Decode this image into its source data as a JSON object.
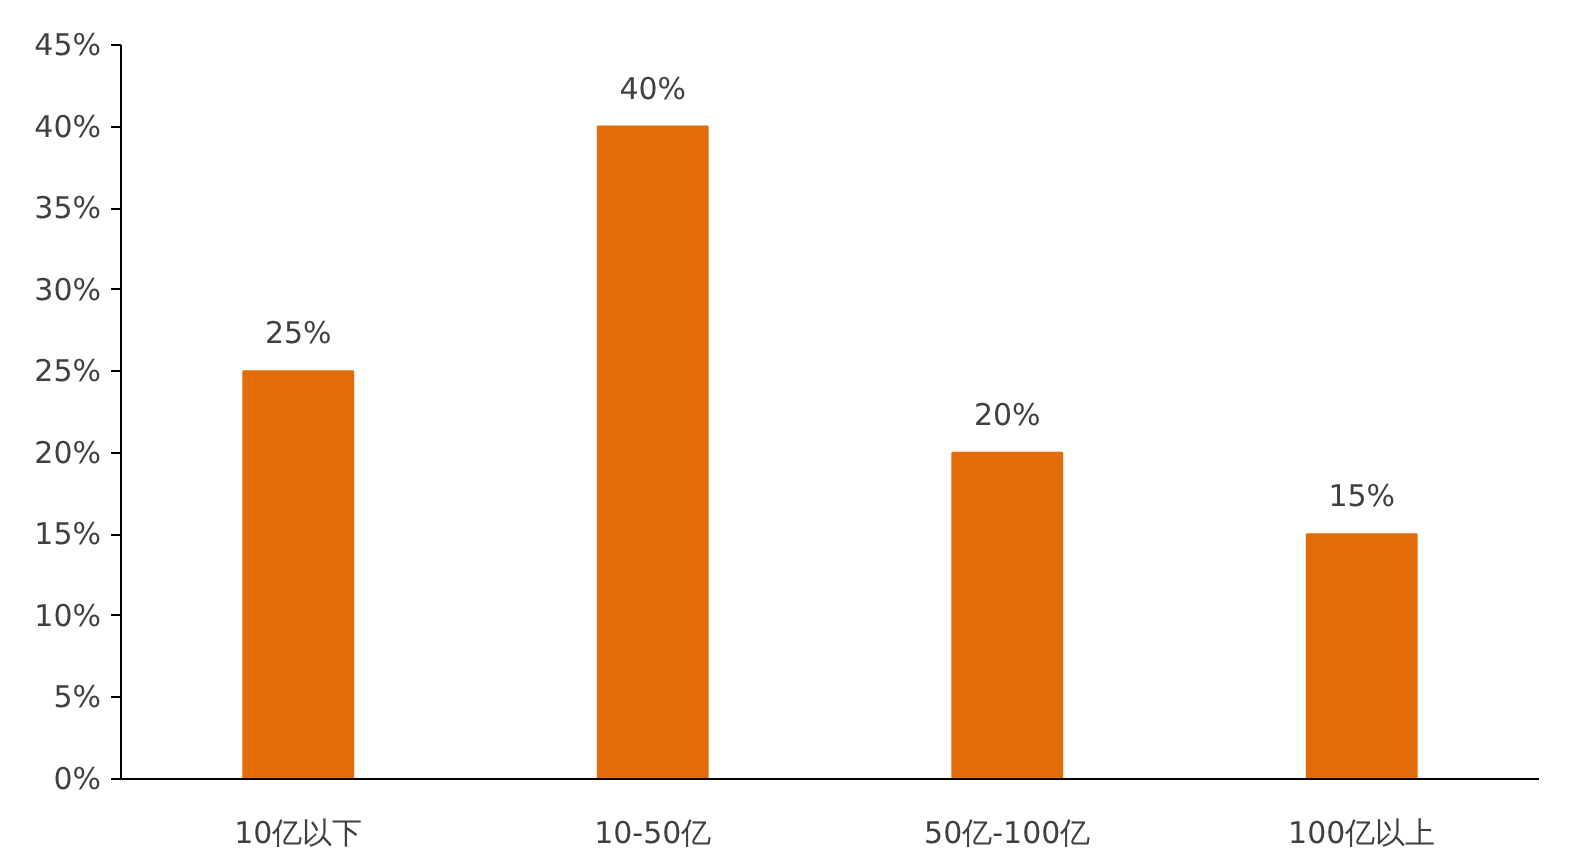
{
  "chart_data": {
    "type": "bar",
    "categories": [
      "10亿以下",
      "10-50亿",
      "50亿-100亿",
      "100亿以上"
    ],
    "values": [
      25,
      40,
      20,
      15
    ],
    "value_labels": [
      "25%",
      "40%",
      "20%",
      "15%"
    ],
    "color": "#e36c0a",
    "ylim": [
      0,
      45
    ],
    "yticks": [
      {
        "value": 0,
        "label": "0%"
      },
      {
        "value": 5,
        "label": "5%"
      },
      {
        "value": 10,
        "label": "10%"
      },
      {
        "value": 15,
        "label": "15%"
      },
      {
        "value": 20,
        "label": "20%"
      },
      {
        "value": 25,
        "label": "25%"
      },
      {
        "value": 30,
        "label": "30%"
      },
      {
        "value": 35,
        "label": "35%"
      },
      {
        "value": 40,
        "label": "40%"
      },
      {
        "value": 45,
        "label": "45%"
      }
    ],
    "grid": false
  }
}
